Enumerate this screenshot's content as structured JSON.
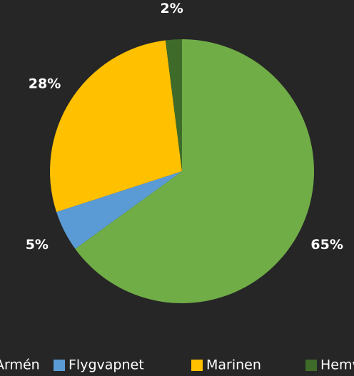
{
  "chart_data": {
    "type": "pie",
    "categories": [
      "Armén",
      "Flygvapnet",
      "Marinen",
      "Hemvärnet"
    ],
    "values": [
      65,
      5,
      28,
      2
    ],
    "value_labels": [
      "65%",
      "5%",
      "28%",
      "2%"
    ],
    "colors": [
      "#70ad47",
      "#5b9bd5",
      "#ffc000",
      "#3e6b2a"
    ],
    "legend": "bottom"
  }
}
